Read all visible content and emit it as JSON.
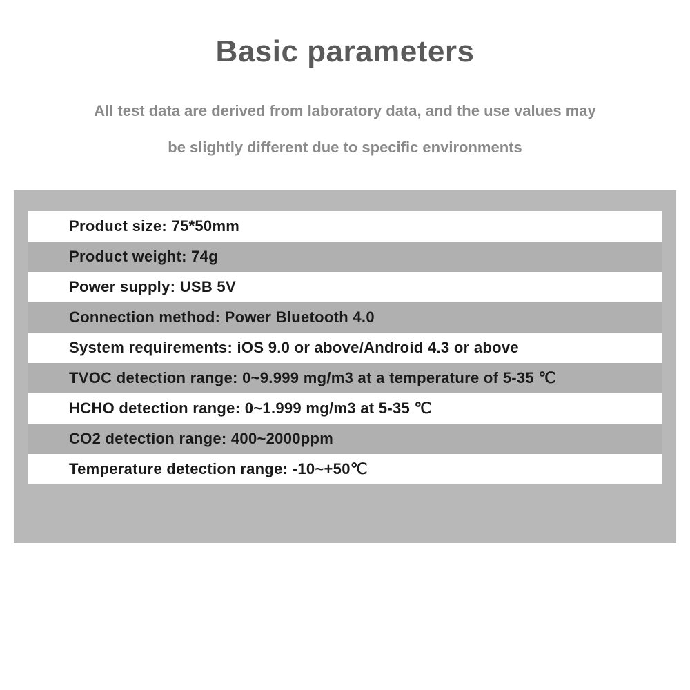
{
  "title": "Basic parameters",
  "subtitle_line1": "All test data are derived from laboratory data, and the use values may",
  "subtitle_line2": "be slightly different due to specific environments",
  "table": {
    "background_color": "#b8b8b8",
    "row_white_color": "#ffffff",
    "row_gray_color": "#b0b0b0",
    "text_color": "#1a1a1a",
    "title_color": "#5a5a5a",
    "subtitle_color": "#8a8a8a",
    "font_size_title": 44,
    "font_size_subtitle": 22,
    "font_size_row": 22,
    "rows": [
      {
        "text": "Product size: 75*50mm",
        "bg": "white"
      },
      {
        "text": "Product weight: 74g",
        "bg": "gray"
      },
      {
        "text": "Power supply: USB 5V",
        "bg": "white"
      },
      {
        "text": "Connection method: Power Bluetooth 4.0",
        "bg": "gray"
      },
      {
        "text": "System requirements: iOS 9.0 or above/Android 4.3 or above",
        "bg": "white"
      },
      {
        "text": "TVOC detection range: 0~9.999 mg/m3 at a temperature of 5-35 ℃",
        "bg": "gray"
      },
      {
        "text": "HCHO detection range: 0~1.999 mg/m3 at 5-35 ℃",
        "bg": "white"
      },
      {
        "text": "CO2 detection range: 400~2000ppm",
        "bg": "gray"
      },
      {
        "text": "Temperature detection range: -10~+50℃",
        "bg": "white"
      }
    ]
  }
}
